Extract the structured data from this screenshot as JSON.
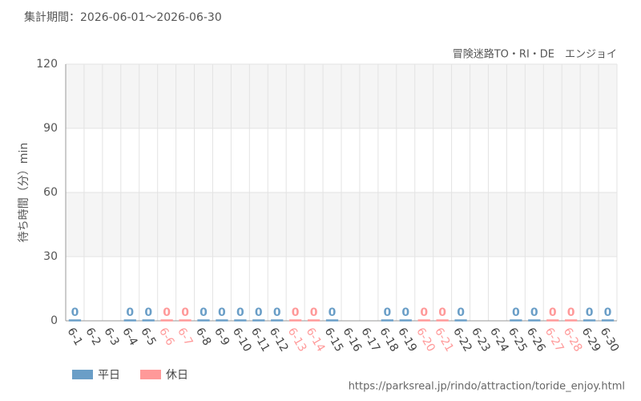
{
  "chart_data": {
    "type": "bar",
    "title": "集計期間：2026-06-01～2026-06-30",
    "subtitle": "冒険迷路TO・RI・DE　エンジョイ",
    "y_label": "待ち時間（分）min",
    "source": "https://parksreal.jp/rindo/attraction/toride_enjoy.html",
    "categories": [
      "6-1",
      "6-2",
      "6-3",
      "6-4",
      "6-5",
      "6-6",
      "6-7",
      "6-8",
      "6-9",
      "6-10",
      "6-11",
      "6-12",
      "6-13",
      "6-14",
      "6-15",
      "6-16",
      "6-17",
      "6-18",
      "6-19",
      "6-20",
      "6-21",
      "6-22",
      "6-23",
      "6-24",
      "6-25",
      "6-26",
      "6-27",
      "6-28",
      "6-29",
      "6-30"
    ],
    "series": [
      {
        "name": "平日",
        "color": "#6a9ec7",
        "values": [
          0,
          null,
          null,
          0,
          0,
          null,
          null,
          0,
          0,
          0,
          0,
          0,
          null,
          null,
          0,
          null,
          null,
          0,
          0,
          null,
          null,
          0,
          null,
          null,
          0,
          0,
          null,
          null,
          0,
          0
        ]
      },
      {
        "name": "休日",
        "color": "#ff9999",
        "values": [
          null,
          null,
          null,
          null,
          null,
          0,
          0,
          null,
          null,
          null,
          null,
          null,
          0,
          0,
          null,
          null,
          null,
          null,
          null,
          0,
          0,
          null,
          null,
          null,
          null,
          null,
          0,
          0,
          null,
          null
        ]
      }
    ],
    "ylim": [
      0,
      120
    ],
    "yticks": [
      0,
      30,
      60,
      90,
      120
    ],
    "grid": true
  }
}
